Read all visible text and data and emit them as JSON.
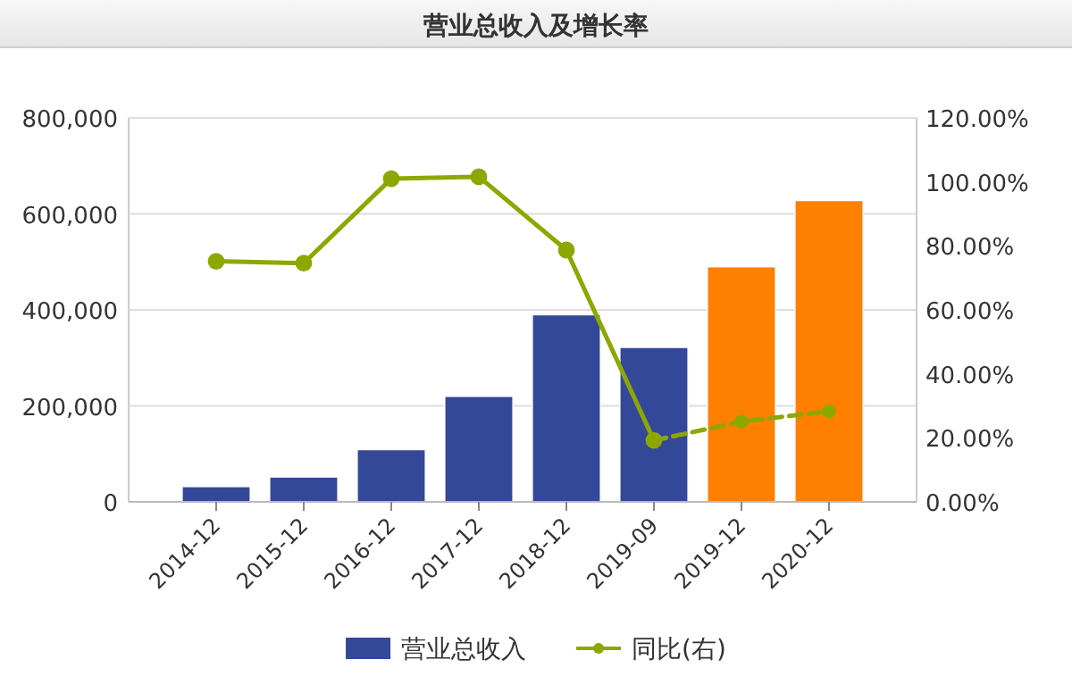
{
  "chart_data": {
    "type": "bar",
    "title": "营业总收入及增长率",
    "categories": [
      "2014-12",
      "2015-12",
      "2016-12",
      "2017-12",
      "2018-12",
      "2019-09",
      "2019-12",
      "2020-12"
    ],
    "series": [
      {
        "name": "营业总收入",
        "color": "#34489a",
        "colors": [
          "#34489a",
          "#34489a",
          "#34489a",
          "#34489a",
          "#34489a",
          "#34489a",
          "#ff7f00",
          "#ff7f00"
        ],
        "values": [
          32000,
          52000,
          109000,
          220000,
          390000,
          322000,
          490000,
          628000
        ]
      },
      {
        "name": "同比(右)",
        "type": "line",
        "axis": "y2",
        "color": "#8ca800",
        "line_style": "solid",
        "marker": "circle",
        "values": [
          75.2,
          74.6,
          101.0,
          101.6,
          78.7,
          19.2,
          null,
          null
        ]
      },
      {
        "type": "line",
        "axis": "y2",
        "color": "#8ca800",
        "line_style": "dashed",
        "marker": "circle",
        "values": [
          null,
          null,
          null,
          null,
          null,
          19.2,
          25.1,
          28.3
        ]
      }
    ],
    "ylim": [
      0,
      800000
    ],
    "yticks": [
      {
        "value": 0,
        "label": "0"
      },
      {
        "value": 200000,
        "label": "200,000"
      },
      {
        "value": 400000,
        "label": "400,000"
      },
      {
        "value": 600000,
        "label": "600,000"
      },
      {
        "value": 800000,
        "label": "800,000"
      }
    ],
    "y2lim": [
      0,
      120
    ],
    "y2ticks": [
      {
        "value": 0,
        "label": "0.00%"
      },
      {
        "value": 20,
        "label": "20.00%"
      },
      {
        "value": 40,
        "label": "40.00%"
      },
      {
        "value": 60,
        "label": "60.00%"
      },
      {
        "value": 80,
        "label": "80.00%"
      },
      {
        "value": 100,
        "label": "100.00%"
      },
      {
        "value": 120,
        "label": "120.00%"
      }
    ],
    "grid": "y",
    "legend": "bottom"
  }
}
